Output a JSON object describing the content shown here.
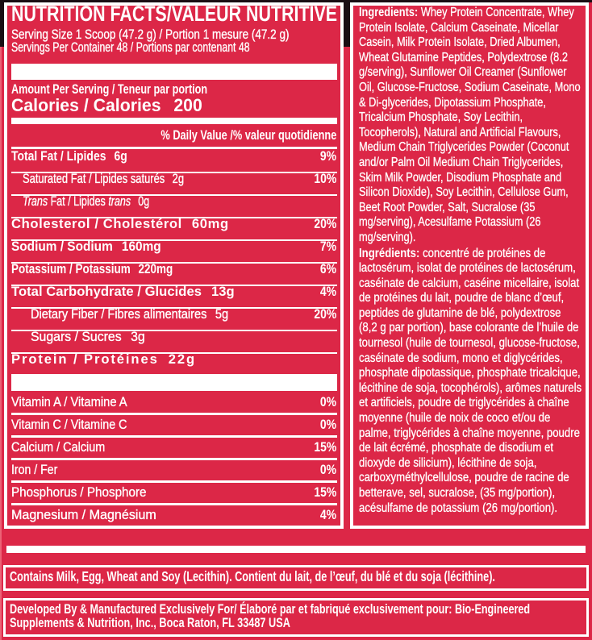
{
  "colors": {
    "background_red": "#dc2747",
    "panel_border_white": "#ffffff",
    "edge_mark_black": "#1a0d13",
    "edge_highlight_pink": "#ec6376"
  },
  "nutrition_facts": {
    "title": "NUTRITION FACTS/VALEUR NUTRITIVE",
    "serving_size": "Serving Size 1 Scoop (47.2 g) / Portion 1 mesure (47.2 g)",
    "servings_per_container": "Servings Per Container 48 / Portions par contenant 48",
    "amount_per_serving": "Amount Per Serving / Teneur par portion",
    "calories_label": "Calories / Calories",
    "calories_value": "200",
    "daily_value_header": "% Daily Value /% valeur quotidienne",
    "nutrients": [
      {
        "parts": [
          {
            "t": "Total Fat / Lipides"
          }
        ],
        "value": "6g",
        "dv": "9%",
        "indent": 0,
        "bold": true
      },
      {
        "parts": [
          {
            "t": "Saturated Fat / Lipides saturés"
          }
        ],
        "value": "2g",
        "dv": "10%",
        "indent": 1,
        "bold": false
      },
      {
        "parts": [
          {
            "t": "Trans",
            "i": true
          },
          {
            "t": " Fat / Lipides "
          },
          {
            "t": "trans",
            "i": true
          }
        ],
        "value": "0g",
        "dv": "",
        "indent": 1,
        "bold": false
      },
      {
        "parts": [
          {
            "t": "Cholesterol / Cholestérol"
          }
        ],
        "value": "60mg",
        "dv": "20%",
        "indent": 0,
        "bold": true
      },
      {
        "parts": [
          {
            "t": "Sodium / Sodium"
          }
        ],
        "value": "160mg",
        "dv": "7%",
        "indent": 0,
        "bold": true
      },
      {
        "parts": [
          {
            "t": "Potassium / Potassium"
          }
        ],
        "value": "220mg",
        "dv": "6%",
        "indent": 0,
        "bold": true
      },
      {
        "parts": [
          {
            "t": "Total Carbohydrate / Glucides"
          }
        ],
        "value": "13g",
        "dv": "4%",
        "indent": 0,
        "bold": true
      },
      {
        "parts": [
          {
            "t": "Dietary Fiber / Fibres alimentaires"
          }
        ],
        "value": "5g",
        "dv": "20%",
        "indent": 2,
        "bold": false
      },
      {
        "parts": [
          {
            "t": "Sugars / Sucres"
          }
        ],
        "value": "3g",
        "dv": "",
        "indent": 2,
        "bold": false
      },
      {
        "parts": [
          {
            "t": "Protein / Protéines"
          }
        ],
        "value": "22g",
        "dv": "",
        "indent": 0,
        "bold": true
      }
    ],
    "micronutrients": [
      {
        "name": "Vitamin A / Vitamine A",
        "dv": "0%"
      },
      {
        "name": "Vitamin C / Vitamine C",
        "dv": "0%"
      },
      {
        "name": "Calcium / Calcium",
        "dv": "15%"
      },
      {
        "name": "Iron / Fer",
        "dv": "0%"
      },
      {
        "name": "Phosphorus / Phosphore",
        "dv": "15%"
      },
      {
        "name": "Magnesium / Magnésium",
        "dv": "4%"
      }
    ]
  },
  "ingredients": {
    "english_label": "Ingredients:",
    "english_text": "Whey Protein Concentrate, Whey Protein Isolate, Calcium Caseinate, Micellar Casein, Milk Protein Isolate, Dried Albumen, Wheat Glutamine Peptides, Polydextrose (8.2 g/serving), Sunflower Oil Creamer (Sunflower Oil, Glucose-Fructose, Sodium Caseinate, Mono & Di-glycerides, Dipotassium Phosphate, Tricalcium Phosphate, Soy Lecithin, Tocopherols), Natural and Artificial Flavours, Medium Chain Triglycerides Powder (Coconut and/or Palm Oil Medium Chain Triglycerides, Skim Milk Powder, Disodium Phosphate and Silicon Dioxide), Soy Lecithin, Cellulose Gum, Beet Root Powder, Salt, Sucralose (35 mg/serving), Acesulfame Potassium (26 mg/serving).",
    "french_label": "Ingrédients:",
    "french_text": "concentré de protéines de lactosérum, isolat de protéines de lactosérum, caséinate de calcium, caséine micellaire, isolat de protéines du lait, poudre de blanc d’œuf, peptides de glutamine de blé, polydextrose (8,2 g par portion), base colorante de l’huile de tournesol (huile de tournesol, glucose-fructose, caséinate de sodium, mono et diglycérides, phosphate dipotassique, phosphate tricalcique, lécithine de soja, tocophérols), arômes naturels et artificiels, poudre de triglycérides à chaîne moyenne (huile de noix de coco et/ou de palme, triglycérides à chaîne moyenne, poudre de lait écrémé, phosphate de disodium et dioxyde de silicium), lécithine de soja, carboxyméthylcellulose, poudre de racine de betterave, sel, sucralose, (35 mg/portion), acésulfame de potassium (26 mg/portion)."
  },
  "allergen_notice": "Contains Milk, Egg, Wheat and Soy (Lecithin). Contient du lait, de l’œuf, du blé et du soja (lécithine).",
  "manufacturer_notice_line1": "Developed By & Manufactured Exclusively For/ Élaboré par et fabriqué exclusivement pour: Bio-Engineered",
  "manufacturer_notice_line2": "Supplements & Nutrition, Inc., Boca Raton, FL 33487 USA"
}
